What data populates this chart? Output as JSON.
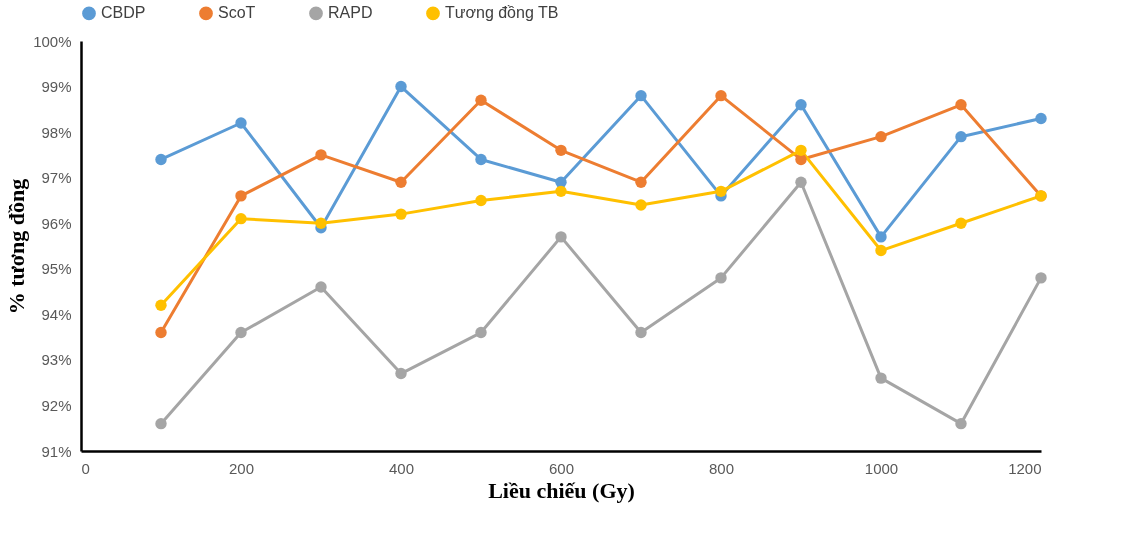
{
  "chart_data": {
    "type": "line",
    "xlabel": "Liều chiếu (Gy)",
    "ylabel": "% tương đồng",
    "x": [
      100,
      200,
      300,
      400,
      500,
      600,
      700,
      800,
      900,
      1000,
      1100,
      1200
    ],
    "series": [
      {
        "name": "CBDP",
        "color": "#5b9bd5",
        "values": [
          97.4,
          98.2,
          95.9,
          99.0,
          97.4,
          96.9,
          98.8,
          96.6,
          98.6,
          95.7,
          97.9,
          98.3
        ]
      },
      {
        "name": "ScoT",
        "color": "#ed7d31",
        "values": [
          93.6,
          96.6,
          97.5,
          96.9,
          98.7,
          97.6,
          96.9,
          98.8,
          97.4,
          97.9,
          98.6,
          96.6
        ]
      },
      {
        "name": "RAPD",
        "color": "#a5a5a5",
        "values": [
          91.6,
          93.6,
          94.6,
          92.7,
          93.6,
          95.7,
          93.6,
          94.8,
          96.9,
          92.6,
          91.6,
          94.8
        ]
      },
      {
        "name": "Tương đồng TB",
        "color": "#ffc000",
        "values": [
          94.2,
          96.1,
          96.0,
          96.2,
          96.5,
          96.7,
          96.4,
          96.7,
          97.6,
          95.4,
          96.0,
          96.6
        ]
      }
    ],
    "xlim": [
      0,
      1200
    ],
    "xticks": [
      0,
      200,
      400,
      600,
      800,
      1000,
      1200
    ],
    "ylim": [
      91,
      100
    ],
    "yticks": [
      {
        "value": 91,
        "label": "91%"
      },
      {
        "value": 92,
        "label": "92%"
      },
      {
        "value": 93,
        "label": "93%"
      },
      {
        "value": 94,
        "label": "94%"
      },
      {
        "value": 95,
        "label": "95%"
      },
      {
        "value": 96,
        "label": "96%"
      },
      {
        "value": 97,
        "label": "97%"
      },
      {
        "value": 98,
        "label": "98%"
      },
      {
        "value": 99,
        "label": "99%"
      },
      {
        "value": 100,
        "label": "100%"
      }
    ],
    "grid": false,
    "legend": "top",
    "marker": "circle",
    "line_style": "solid"
  }
}
